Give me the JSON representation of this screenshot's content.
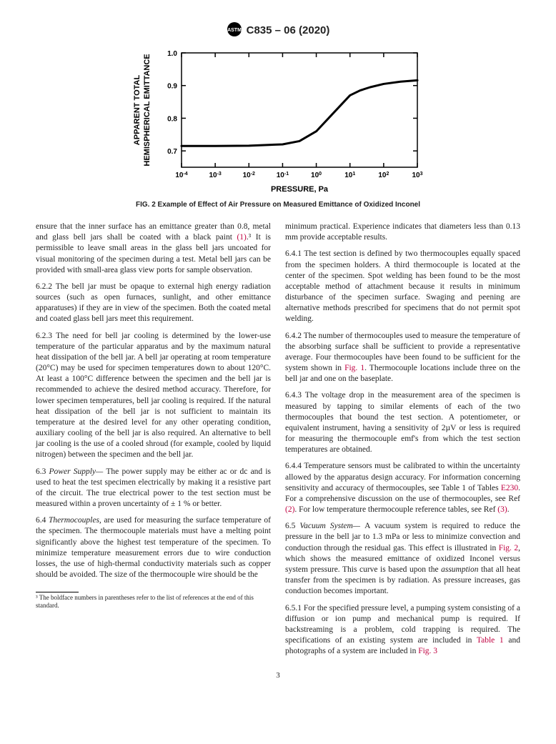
{
  "header": {
    "designation": "C835 – 06 (2020)"
  },
  "chart": {
    "type": "line",
    "xlabel": "PRESSURE, Pa",
    "ylabel": "APPARENT TOTAL HEMISPHERICAL EMITTANCE",
    "xlim": [
      -4,
      3
    ],
    "ylim": [
      0.65,
      1.0
    ],
    "xticks": [
      "10⁻⁴",
      "10⁻³",
      "10⁻²",
      "10⁻¹",
      "10⁰",
      "10¹",
      "10²",
      "10³"
    ],
    "yticks": [
      0.7,
      0.8,
      0.9,
      1.0
    ],
    "line_color": "#000000",
    "line_width": 3,
    "tick_color": "#000000",
    "axis_color": "#000000",
    "background_color": "#ffffff",
    "label_fontsize": 11,
    "tick_fontsize": 10,
    "data": {
      "x_log": [
        -4,
        -3,
        -2,
        -1,
        -0.5,
        0,
        0.5,
        1,
        1.3,
        1.6,
        2,
        2.5,
        3
      ],
      "y": [
        0.715,
        0.715,
        0.716,
        0.72,
        0.73,
        0.76,
        0.815,
        0.87,
        0.885,
        0.895,
        0.905,
        0.912,
        0.916
      ]
    }
  },
  "fig_caption": "FIG. 2  Example of Effect of Air Pressure on Measured Emittance of Oxidized Inconel",
  "paragraphs": {
    "p1a": "ensure that the inner surface has an emittance greater than 0.8, metal and glass bell jars shall be coated with a black paint ",
    "p1_ref": "(1)",
    "p1b": ".³ It is permissible to leave small areas in the glass bell jars uncoated for visual monitoring of the specimen during a test. Metal bell jars can be provided with small-area glass view ports for sample observation.",
    "p2": "6.2.2 The bell jar must be opaque to external high energy radiation sources (such as open furnaces, sunlight, and other emittance apparatuses) if they are in view of the specimen. Both the coated metal and coated glass bell jars meet this requirement.",
    "p3": "6.2.3 The need for bell jar cooling is determined by the lower-use temperature of the particular apparatus and by the maximum natural heat dissipation of the bell jar. A bell jar operating at room temperature (20°C) may be used for specimen temperatures down to about 120°C. At least a 100°C difference between the specimen and the bell jar is recommended to achieve the desired method accuracy. Therefore, for lower specimen temperatures, bell jar cooling is required. If the natural heat dissipation of the bell jar is not sufficient to maintain its temperature at the desired level for any other operating condition, auxiliary cooling of the bell jar is also required. An alternative to bell jar cooling is the use of a cooled shroud (for example, cooled by liquid nitrogen) between the specimen and the bell jar.",
    "p4_lead": "6.3 ",
    "p4_head": "Power Supply— ",
    "p4_body": "The power supply may be either ac or dc and is used to heat the test specimen electrically by making it a resistive part of the circuit. The true electrical power to the test section must be measured within a proven uncertainty of ± 1 % or better.",
    "p5_lead": "6.4 ",
    "p5_head": "Thermocouples, ",
    "p5_body": "are used for measuring the surface temperature of the specimen. The thermocouple materials must have a melting point significantly above the highest test temperature of the specimen. To minimize temperature measurement errors due to wire conduction losses, the use of high-thermal conductivity materials such as copper should be avoided. The size of the thermocouple wire should be the",
    "p6": "minimum practical. Experience indicates that diameters less than 0.13 mm provide acceptable results.",
    "p7": "6.4.1 The test section is defined by two thermocouples equally spaced from the specimen holders. A third thermocouple is located at the center of the specimen. Spot welding has been found to be the most acceptable method of attachment because it results in minimum disturbance of the specimen surface. Swaging and peening are alternative methods prescribed for specimens that do not permit spot welding.",
    "p8a": "6.4.2 The number of thermocouples used to measure the temperature of the absorbing surface shall be sufficient to provide a representative average. Four thermocouples have been found to be sufficient for the system shown in ",
    "p8_ref": "Fig. 1",
    "p8b": ". Thermocouple locations include three on the bell jar and one on the baseplate.",
    "p9": "6.4.3 The voltage drop in the measurement area of the specimen is measured by tapping to similar elements of each of the two thermocouples that bound the test section. A potentiometer, or equivalent instrument, having a sensitivity of 2µV or less is required for measuring the thermocouple emf's from which the test section temperatures are obtained.",
    "p10a": "6.4.4 Temperature sensors must be calibrated to within the uncertainty allowed by the apparatus design accuracy. For information concerning sensitivity and accuracy of thermocouples, see Table 1 of Tables ",
    "p10_ref1": "E230",
    "p10b": ". For a comprehensive discussion on the use of thermocouples, see Ref ",
    "p10_ref2": "(2)",
    "p10c": ". For low temperature thermocouple reference tables, see Ref ",
    "p10_ref3": "(3)",
    "p10d": ".",
    "p11_lead": "6.5 ",
    "p11_head": "Vacuum System— ",
    "p11a": "A vacuum system is required to reduce the pressure in the bell jar to 1.3 mPa or less to minimize convection and conduction through the residual gas. This effect is illustrated in ",
    "p11_ref": "Fig. 2",
    "p11b": ", which shows the measured emittance of oxidized Inconel versus system pressure. This curve is based upon the ",
    "p11_it": "assumption",
    "p11c": " that all heat transfer from the specimen is by radiation. As pressure increases, gas conduction becomes important.",
    "p12a": "6.5.1 For the specified pressure level, a pumping system consisting of a diffusion or ion pump and mechanical pump is required. If backstreaming is a problem, cold trapping is required. The specifications of an existing system are included in ",
    "p12_ref1": "Table 1",
    "p12b": " and photographs of a system are included in ",
    "p12_ref2": "Fig. 3"
  },
  "footnote": "³ The boldface numbers in parentheses refer to the list of references at the end of this standard.",
  "page_number": "3"
}
